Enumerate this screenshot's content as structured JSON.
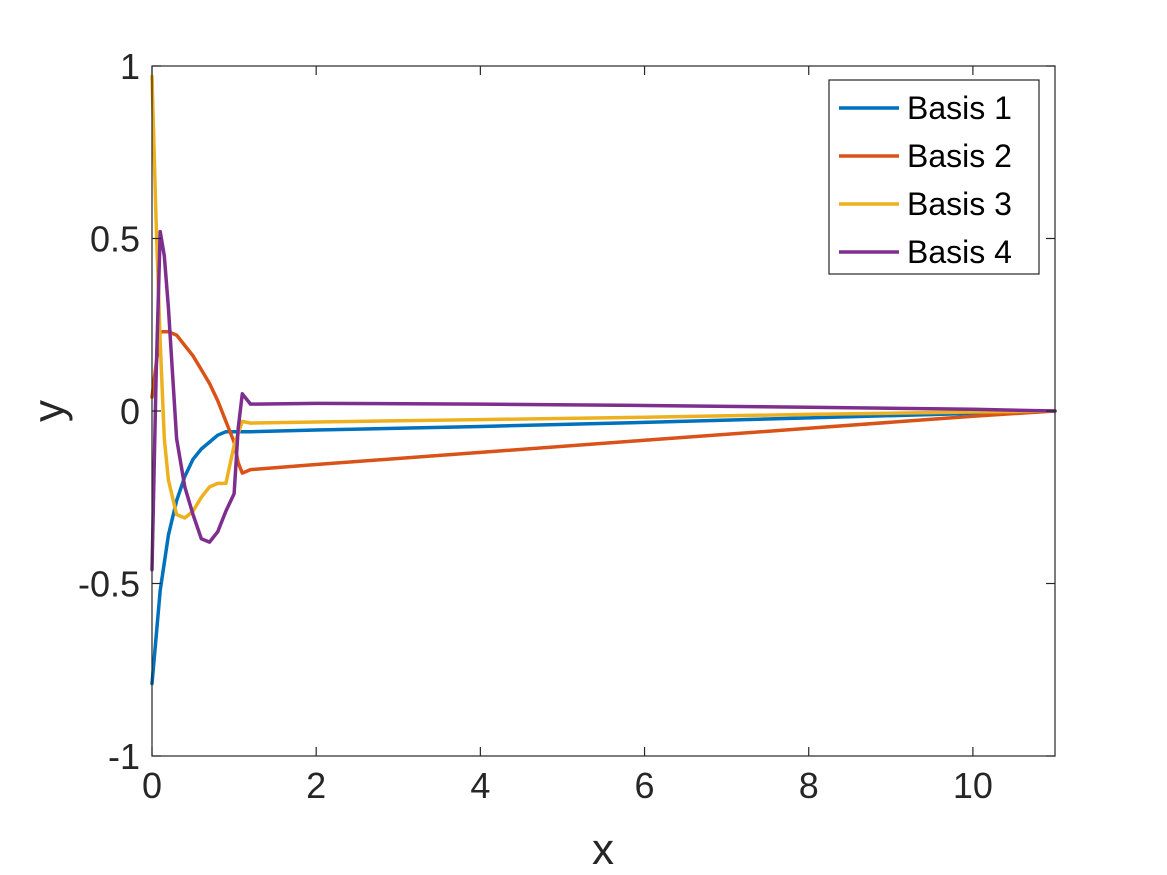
{
  "chart_data": {
    "type": "line",
    "title": "",
    "xlabel": "x",
    "ylabel": "y",
    "xlim": [
      0,
      11
    ],
    "ylim": [
      -1,
      1
    ],
    "xticks": [
      0,
      2,
      4,
      6,
      8,
      10
    ],
    "xtick_labels": [
      "0",
      "2",
      "4",
      "6",
      "8",
      "10"
    ],
    "yticks": [
      -1,
      -0.5,
      0,
      0.5,
      1
    ],
    "ytick_labels": [
      "-1",
      "-0.5",
      "0",
      "0.5",
      "1"
    ],
    "grid": false,
    "legend_position": "top-right",
    "series": [
      {
        "name": "Basis 1",
        "color": "#0072BD",
        "x": [
          0,
          0.1,
          0.2,
          0.3,
          0.4,
          0.5,
          0.6,
          0.7,
          0.8,
          0.9,
          1.0,
          1.1,
          1.2,
          2,
          4,
          6,
          8,
          10,
          11
        ],
        "y": [
          -0.79,
          -0.52,
          -0.36,
          -0.26,
          -0.19,
          -0.14,
          -0.11,
          -0.09,
          -0.07,
          -0.06,
          -0.06,
          -0.06,
          -0.06,
          -0.055,
          -0.045,
          -0.033,
          -0.02,
          -0.007,
          0
        ]
      },
      {
        "name": "Basis 2",
        "color": "#D95319",
        "x": [
          0,
          0.1,
          0.2,
          0.3,
          0.4,
          0.5,
          0.6,
          0.7,
          0.8,
          0.9,
          1.0,
          1.05,
          1.1,
          1.2,
          2,
          4,
          6,
          8,
          10,
          11
        ],
        "y": [
          0.04,
          0.23,
          0.23,
          0.22,
          0.19,
          0.16,
          0.12,
          0.08,
          0.03,
          -0.03,
          -0.09,
          -0.15,
          -0.18,
          -0.17,
          -0.155,
          -0.12,
          -0.085,
          -0.05,
          -0.015,
          0
        ]
      },
      {
        "name": "Basis 3",
        "color": "#EDB120",
        "x": [
          0,
          0.05,
          0.1,
          0.15,
          0.2,
          0.3,
          0.4,
          0.5,
          0.6,
          0.7,
          0.8,
          0.9,
          1.0,
          1.1,
          1.2,
          2,
          4,
          6,
          8,
          10,
          11
        ],
        "y": [
          0.97,
          0.55,
          0.2,
          -0.08,
          -0.2,
          -0.3,
          -0.31,
          -0.29,
          -0.25,
          -0.22,
          -0.21,
          -0.21,
          -0.1,
          -0.03,
          -0.035,
          -0.032,
          -0.025,
          -0.018,
          -0.01,
          -0.003,
          0
        ]
      },
      {
        "name": "Basis 4",
        "color": "#7E2F8E",
        "x": [
          0,
          0.05,
          0.1,
          0.15,
          0.2,
          0.3,
          0.4,
          0.5,
          0.6,
          0.7,
          0.8,
          0.9,
          1.0,
          1.05,
          1.1,
          1.2,
          2,
          4,
          6,
          8,
          10,
          11
        ],
        "y": [
          -0.46,
          0.1,
          0.52,
          0.45,
          0.3,
          -0.08,
          -0.22,
          -0.3,
          -0.37,
          -0.38,
          -0.35,
          -0.29,
          -0.24,
          -0.05,
          0.05,
          0.02,
          0.022,
          0.02,
          0.016,
          0.011,
          0.005,
          0
        ]
      }
    ]
  }
}
